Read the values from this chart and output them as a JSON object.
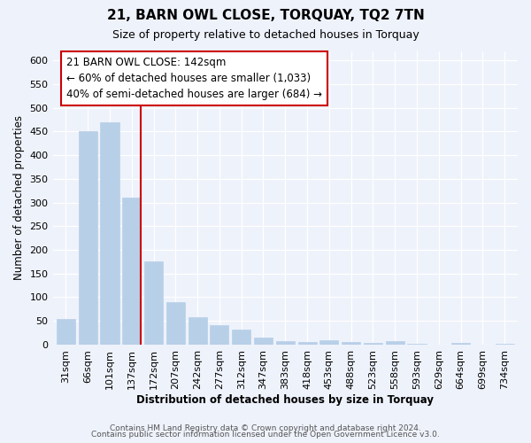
{
  "title": "21, BARN OWL CLOSE, TORQUAY, TQ2 7TN",
  "subtitle": "Size of property relative to detached houses in Torquay",
  "xlabel": "Distribution of detached houses by size in Torquay",
  "ylabel": "Number of detached properties",
  "bar_labels": [
    "31sqm",
    "66sqm",
    "101sqm",
    "137sqm",
    "172sqm",
    "207sqm",
    "242sqm",
    "277sqm",
    "312sqm",
    "347sqm",
    "383sqm",
    "418sqm",
    "453sqm",
    "488sqm",
    "523sqm",
    "558sqm",
    "593sqm",
    "629sqm",
    "664sqm",
    "699sqm",
    "734sqm"
  ],
  "bar_values": [
    55,
    450,
    470,
    310,
    175,
    90,
    58,
    42,
    32,
    15,
    8,
    5,
    10,
    5,
    3,
    8,
    2,
    0,
    3,
    0,
    2
  ],
  "bar_color": "#b8cfe8",
  "line_x_index": 3,
  "line_color": "#cc0000",
  "annotation_line1": "21 BARN OWL CLOSE: 142sqm",
  "annotation_line2": "← 60% of detached houses are smaller (1,033)",
  "annotation_line3": "40% of semi-detached houses are larger (684) →",
  "annotation_box_color": "#ffffff",
  "annotation_box_edge": "#cc0000",
  "ylim": [
    0,
    620
  ],
  "yticks": [
    0,
    50,
    100,
    150,
    200,
    250,
    300,
    350,
    400,
    450,
    500,
    550,
    600
  ],
  "footer_line1": "Contains HM Land Registry data © Crown copyright and database right 2024.",
  "footer_line2": "Contains public sector information licensed under the Open Government Licence v3.0.",
  "bg_color": "#eef2fb",
  "plot_bg_color": "#eef2fb",
  "title_fontsize": 11,
  "subtitle_fontsize": 9,
  "annotation_fontsize": 8.5,
  "axis_fontsize": 8.5,
  "tick_fontsize": 8,
  "footer_fontsize": 6.5
}
